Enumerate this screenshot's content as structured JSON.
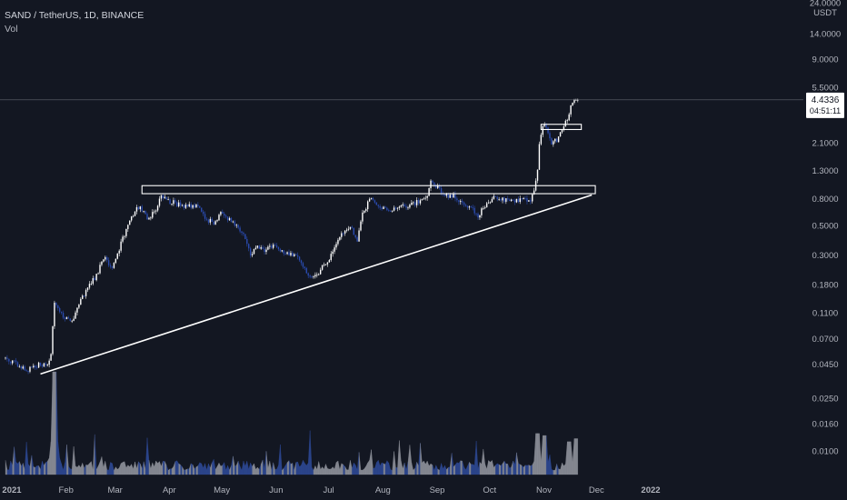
{
  "header": {
    "symbol_line": "SAND / TetherUS, 1D, BINANCE",
    "indicator": "Vol"
  },
  "colors": {
    "background": "#131722",
    "up": "#ffffff",
    "down": "#2a4bb0",
    "vol_up": "#9598a1",
    "vol_down": "#2f4b9a",
    "text": "#b2b5be",
    "tag": "#ffffff"
  },
  "chart_data": {
    "type": "candlestick",
    "yscale": "log",
    "price_axis": {
      "unit": "USDT",
      "ticks": [
        "24.0000",
        "14.0000",
        "9.0000",
        "5.5000",
        "2.1000",
        "1.3000",
        "0.8000",
        "0.5000",
        "0.3000",
        "0.1800",
        "0.1100",
        "0.0700",
        "0.0450",
        "0.0250",
        "0.0160",
        "0.0100"
      ],
      "last_price": "4.4336",
      "countdown": "04:51:11"
    },
    "time_axis": {
      "ticks": [
        "2021",
        "Feb",
        "Mar",
        "Apr",
        "May",
        "Jun",
        "Jul",
        "Aug",
        "Sep",
        "Oct",
        "Nov",
        "Dec",
        "2022"
      ]
    },
    "price_path": [
      [
        "2021-01-01",
        0.05
      ],
      [
        "2021-01-08",
        0.045
      ],
      [
        "2021-01-13",
        0.04
      ],
      [
        "2021-01-20",
        0.045
      ],
      [
        "2021-01-25",
        0.043
      ],
      [
        "2021-01-27",
        0.055
      ],
      [
        "2021-01-29",
        0.13
      ],
      [
        "2021-02-03",
        0.1
      ],
      [
        "2021-02-08",
        0.095
      ],
      [
        "2021-02-12",
        0.13
      ],
      [
        "2021-02-17",
        0.17
      ],
      [
        "2021-02-22",
        0.21
      ],
      [
        "2021-02-26",
        0.29
      ],
      [
        "2021-03-02",
        0.24
      ],
      [
        "2021-03-05",
        0.27
      ],
      [
        "2021-03-09",
        0.4
      ],
      [
        "2021-03-12",
        0.5
      ],
      [
        "2021-03-16",
        0.65
      ],
      [
        "2021-03-19",
        0.7
      ],
      [
        "2021-03-23",
        0.58
      ],
      [
        "2021-03-27",
        0.62
      ],
      [
        "2021-03-31",
        0.85
      ],
      [
        "2021-04-05",
        0.76
      ],
      [
        "2021-04-10",
        0.72
      ],
      [
        "2021-04-15",
        0.7
      ],
      [
        "2021-04-20",
        0.72
      ],
      [
        "2021-04-25",
        0.57
      ],
      [
        "2021-04-30",
        0.52
      ],
      [
        "2021-05-04",
        0.62
      ],
      [
        "2021-05-09",
        0.56
      ],
      [
        "2021-05-13",
        0.5
      ],
      [
        "2021-05-18",
        0.4
      ],
      [
        "2021-05-21",
        0.29
      ],
      [
        "2021-05-24",
        0.35
      ],
      [
        "2021-05-29",
        0.33
      ],
      [
        "2021-06-03",
        0.35
      ],
      [
        "2021-06-08",
        0.32
      ],
      [
        "2021-06-12",
        0.31
      ],
      [
        "2021-06-17",
        0.29
      ],
      [
        "2021-06-22",
        0.22
      ],
      [
        "2021-06-26",
        0.2
      ],
      [
        "2021-06-30",
        0.23
      ],
      [
        "2021-07-06",
        0.3
      ],
      [
        "2021-07-12",
        0.42
      ],
      [
        "2021-07-17",
        0.5
      ],
      [
        "2021-07-21",
        0.38
      ],
      [
        "2021-07-24",
        0.6
      ],
      [
        "2021-07-28",
        0.8
      ],
      [
        "2021-08-02",
        0.7
      ],
      [
        "2021-08-08",
        0.65
      ],
      [
        "2021-08-14",
        0.68
      ],
      [
        "2021-08-20",
        0.72
      ],
      [
        "2021-08-26",
        0.76
      ],
      [
        "2021-08-30",
        0.85
      ],
      [
        "2021-09-01",
        1.1
      ],
      [
        "2021-09-04",
        1.0
      ],
      [
        "2021-09-09",
        0.82
      ],
      [
        "2021-09-14",
        0.86
      ],
      [
        "2021-09-20",
        0.7
      ],
      [
        "2021-09-24",
        0.68
      ],
      [
        "2021-09-28",
        0.6
      ],
      [
        "2021-10-02",
        0.7
      ],
      [
        "2021-10-07",
        0.82
      ],
      [
        "2021-10-12",
        0.78
      ],
      [
        "2021-10-18",
        0.76
      ],
      [
        "2021-10-24",
        0.79
      ],
      [
        "2021-10-28",
        0.78
      ],
      [
        "2021-10-30",
        0.9
      ],
      [
        "2021-11-01",
        1.3
      ],
      [
        "2021-11-02",
        2.0
      ],
      [
        "2021-11-04",
        2.9
      ],
      [
        "2021-11-06",
        2.7
      ],
      [
        "2021-11-09",
        2.1
      ],
      [
        "2021-11-12",
        2.2
      ],
      [
        "2021-11-15",
        2.7
      ],
      [
        "2021-11-18",
        3.2
      ],
      [
        "2021-11-21",
        4.3
      ],
      [
        "2021-11-24",
        4.434
      ]
    ],
    "volume_spikes": [
      [
        "2021-01-29",
        100
      ],
      [
        "2021-11-01",
        40
      ],
      [
        "2021-11-05",
        38
      ],
      [
        "2021-11-19",
        32
      ],
      [
        "2021-11-23",
        35
      ]
    ],
    "annotations": {
      "resistance_box": {
        "start": "2021-03-20",
        "end": "2021-12-04",
        "top": 1.0,
        "bottom": 0.87
      },
      "flag_box": {
        "start": "2021-11-03",
        "end": "2021-11-26",
        "top": 2.9,
        "bottom": 2.65
      },
      "trendline": {
        "start": [
          "2021-01-21",
          0.038
        ],
        "end": [
          "2021-12-02",
          0.85
        ]
      },
      "last_price_line": 4.4336
    }
  }
}
